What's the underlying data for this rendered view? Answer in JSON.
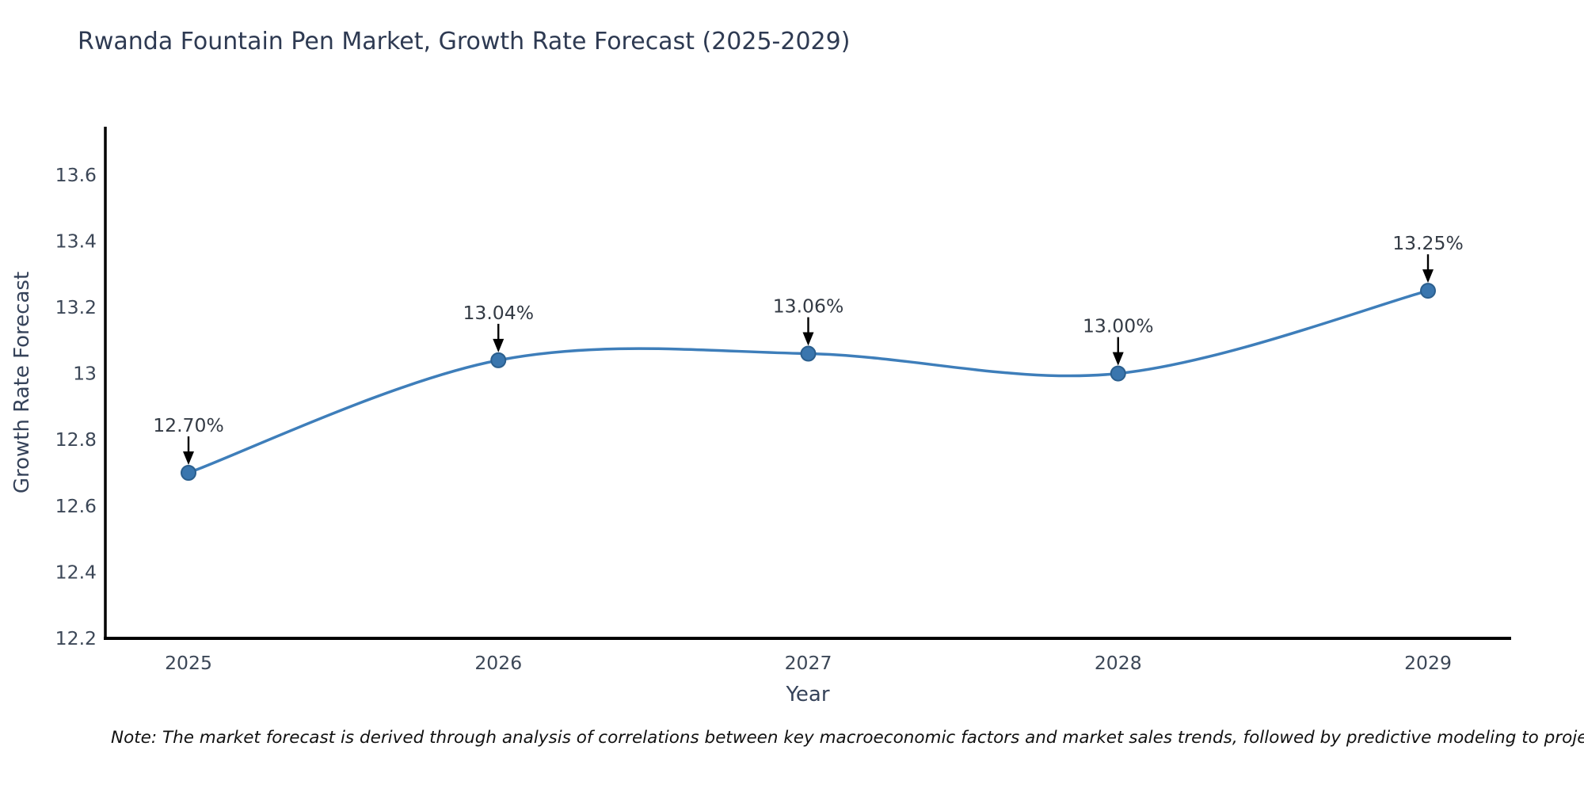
{
  "figure": {
    "note": "Note: The market forecast is derived through analysis of correlations between key macroeconomic factors and market sales trends, followed by predictive modeling to project future sal"
  },
  "chart_data": {
    "type": "line",
    "title": "Rwanda Fountain Pen Market, Growth Rate Forecast (2025-2029)",
    "xlabel": "Year",
    "ylabel": "Growth Rate Forecast",
    "categories": [
      "2025",
      "2026",
      "2027",
      "2028",
      "2029"
    ],
    "series": [
      {
        "name": "Growth Rate Forecast",
        "values": [
          12.7,
          13.04,
          13.06,
          13.0,
          13.25
        ],
        "point_labels": [
          "12.70%",
          "13.04%",
          "13.06%",
          "13.00%",
          "13.25%"
        ]
      }
    ],
    "yticks": [
      12.2,
      12.4,
      12.6,
      12.8,
      13,
      13.2,
      13.4,
      13.6
    ],
    "ytick_labels": [
      "12.2",
      "12.4",
      "12.6",
      "12.8",
      "13",
      "13.2",
      "13.4",
      "13.6"
    ],
    "ylim": [
      12.2,
      13.746
    ],
    "grid": false,
    "legend_position": "none",
    "line_style": "smooth spline with circular markers and downward annotation arrows",
    "colors": {
      "line": "#3e7eba",
      "marker_fill": "#3a76ae",
      "marker_edge": "#2b5f8e",
      "axis_spine": "#000000",
      "title_text": "#2e3a52",
      "tick_text": "#3c4757",
      "annotation_text": "#333a44",
      "arrow": "#000000",
      "note_text": "#111111",
      "background": "#ffffff"
    }
  }
}
